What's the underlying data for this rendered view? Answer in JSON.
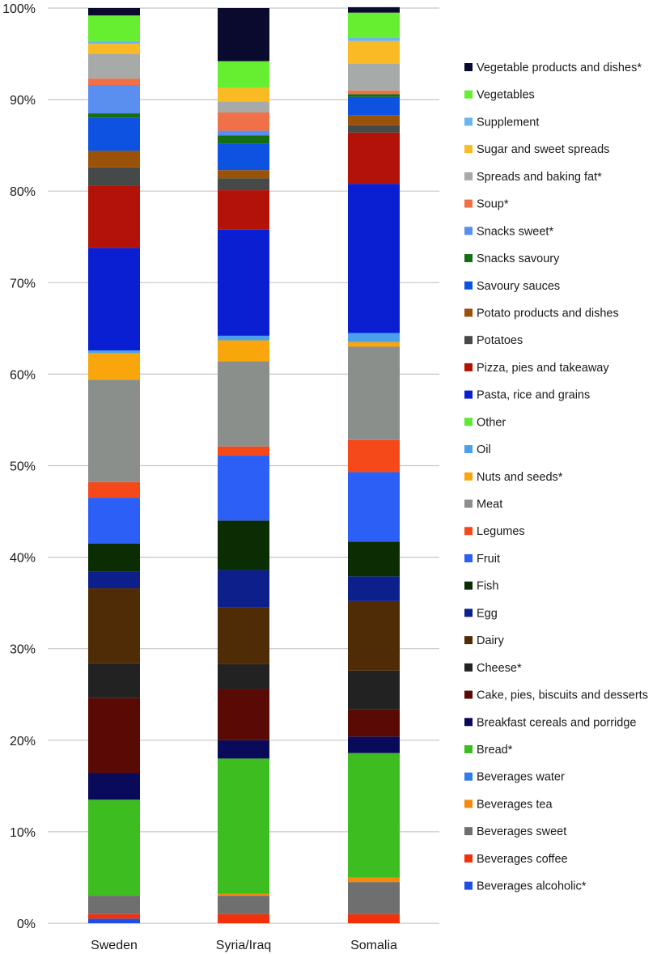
{
  "chart_data": {
    "type": "bar",
    "stacked": true,
    "title": "",
    "xlabel": "",
    "ylabel": "",
    "ylim": [
      0,
      100
    ],
    "y_ticks": [
      "0%",
      "10%",
      "20%",
      "30%",
      "40%",
      "50%",
      "60%",
      "70%",
      "80%",
      "90%",
      "100%"
    ],
    "categories": [
      "Sweden",
      "Syria/Iraq",
      "Somalia"
    ],
    "grid": true,
    "legend_position": "right",
    "series": [
      {
        "name": "Beverages alcoholic*",
        "color": "#1f4fe0",
        "values": [
          0.5,
          0.0,
          0.0
        ]
      },
      {
        "name": "Beverages coffee",
        "color": "#f0310c",
        "values": [
          0.5,
          1.0,
          1.0
        ]
      },
      {
        "name": "Beverages sweet",
        "color": "#6f6f6f",
        "values": [
          2.0,
          2.0,
          3.5
        ]
      },
      {
        "name": "Beverages tea",
        "color": "#f5890a",
        "values": [
          0.0,
          0.2,
          0.5
        ]
      },
      {
        "name": "Beverages water",
        "color": "#2f7fe8",
        "values": [
          0.0,
          0.0,
          0.0
        ]
      },
      {
        "name": "Bread*",
        "color": "#3dbd1f",
        "values": [
          10.5,
          14.8,
          13.6
        ]
      },
      {
        "name": "Breakfast cereals and porridge",
        "color": "#0a0a5a",
        "values": [
          2.9,
          2.0,
          1.8
        ]
      },
      {
        "name": "Cake, pies, biscuits and desserts",
        "color": "#5a0a05",
        "values": [
          8.2,
          5.6,
          3.0
        ]
      },
      {
        "name": "Cheese*",
        "color": "#222222",
        "values": [
          3.8,
          2.7,
          4.2
        ]
      },
      {
        "name": "Dairy",
        "color": "#4f2c06",
        "values": [
          8.2,
          6.2,
          7.6
        ]
      },
      {
        "name": "Egg",
        "color": "#0c1f8a",
        "values": [
          1.8,
          4.1,
          2.7
        ]
      },
      {
        "name": "Fish",
        "color": "#0b2d04",
        "values": [
          3.1,
          5.4,
          3.8
        ]
      },
      {
        "name": "Fruit",
        "color": "#2c5ff5",
        "values": [
          5.0,
          7.1,
          7.6
        ]
      },
      {
        "name": "Legumes",
        "color": "#f5491a",
        "values": [
          1.7,
          1.0,
          3.5
        ]
      },
      {
        "name": "Meat",
        "color": "#8a8f8c",
        "values": [
          11.2,
          9.3,
          10.2
        ]
      },
      {
        "name": "Nuts and seeds*",
        "color": "#f8a60c",
        "values": [
          2.9,
          2.3,
          0.5
        ]
      },
      {
        "name": "Oil",
        "color": "#4aa0ea",
        "values": [
          0.3,
          0.5,
          1.0
        ]
      },
      {
        "name": "Other",
        "color": "#5ee834",
        "values": [
          0.0,
          0.0,
          0.0
        ]
      },
      {
        "name": "Pasta, rice and grains",
        "color": "#0a1ed2",
        "values": [
          11.2,
          11.6,
          16.3
        ]
      },
      {
        "name": "Pizza, pies and takeaway",
        "color": "#b31208",
        "values": [
          6.8,
          4.3,
          5.6
        ]
      },
      {
        "name": "Potatoes",
        "color": "#454a48",
        "values": [
          2.0,
          1.3,
          0.8
        ]
      },
      {
        "name": "Potato products and dishes",
        "color": "#9a5208",
        "values": [
          1.8,
          0.9,
          1.1
        ]
      },
      {
        "name": "Savoury sauces",
        "color": "#0d52e0",
        "values": [
          3.6,
          2.9,
          2.0
        ]
      },
      {
        "name": "Snacks savoury",
        "color": "#166e14",
        "values": [
          0.5,
          0.9,
          0.3
        ]
      },
      {
        "name": "Snacks sweet*",
        "color": "#5a8ff0",
        "values": [
          3.1,
          0.5,
          0.0
        ]
      },
      {
        "name": "Soup*",
        "color": "#f07048",
        "values": [
          0.7,
          2.0,
          0.4
        ]
      },
      {
        "name": "Spreads and baking fat*",
        "color": "#a6aaa8",
        "values": [
          2.7,
          1.2,
          2.9
        ]
      },
      {
        "name": "Sugar and sweet spreads",
        "color": "#f9ba24",
        "values": [
          1.1,
          1.5,
          2.5
        ]
      },
      {
        "name": "Supplement",
        "color": "#6cb6ee",
        "values": [
          0.3,
          0.0,
          0.4
        ]
      },
      {
        "name": "Vegetables",
        "color": "#66ee30",
        "values": [
          2.8,
          2.9,
          2.7
        ]
      },
      {
        "name": "Vegetable products and dishes*",
        "color": "#0a0a2e",
        "values": [
          0.8,
          5.8,
          0.6
        ]
      }
    ]
  }
}
